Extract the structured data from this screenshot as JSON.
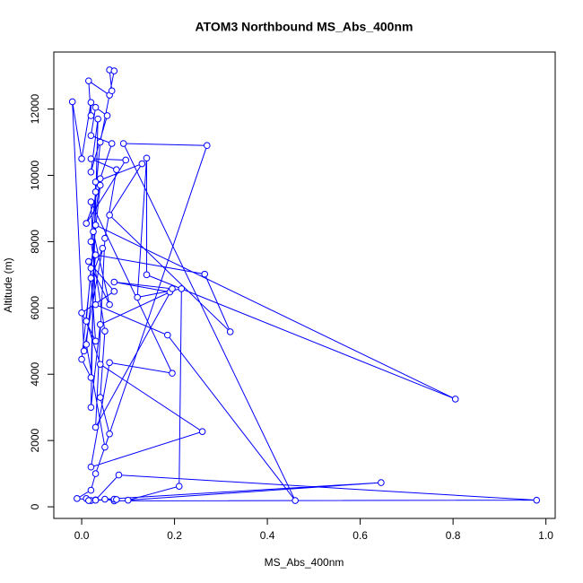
{
  "chart_data": {
    "type": "line",
    "title": "ATOM3 Northbound MS_Abs_400nm",
    "x_label": "MS_Abs_400nm",
    "y_label": "Altitude (m)",
    "color": "#0000ff",
    "marker": "open-circle",
    "x": [
      0.01,
      0.02,
      0.03,
      0.08,
      0.98,
      0.07,
      0.05,
      0.645,
      0.1,
      0.21,
      0.215,
      0.12,
      0.14,
      0.14,
      0.805,
      0.03,
      0.02,
      0.01,
      0.04,
      0.26,
      0.02,
      0.06,
      0.195,
      0.02,
      0.03,
      0.185,
      0.46,
      0.09,
      0.27,
      0.05,
      0.01,
      0.03,
      0.265,
      0.32,
      0.06,
      0.13,
      0.03,
      0.02,
      0.04,
      0.19,
      0.07,
      0.195,
      0.03,
      0.05,
      0.075,
      0.02,
      0.095,
      0.01,
      0.04,
      0,
      0.02,
      0.035,
      0.02,
      0.055,
      0.03,
      0.02,
      0.065,
      0.04,
      0.025,
      0.06,
      0.015,
      0.07,
      0,
      0.03,
      0.02,
      0.045,
      0.005,
      -0.02,
      0,
      0.02,
      0.02,
      0.015,
      0.06,
      0.065,
      0.06,
      0.07,
      0.04,
      0.03,
      0.02,
      0.05,
      0.04,
      0.06,
      0.03,
      0.02,
      -0.01,
      0.03,
      0.07,
      0.075,
      0.015
    ],
    "values": [
      250,
      190,
      210,
      960,
      200,
      180,
      230,
      730,
      200,
      620,
      6580,
      6320,
      10520,
      7000,
      3250,
      8500,
      7200,
      5600,
      4300,
      2270,
      1200,
      4350,
      4030,
      9200,
      6100,
      5180,
      190,
      10960,
      10900,
      1800,
      4900,
      7600,
      7020,
      5280,
      8800,
      10350,
      9800,
      3000,
      5500,
      6480,
      6780,
      6580,
      2400,
      8100,
      10170,
      10500,
      10460,
      8550,
      9700,
      4450,
      3900,
      11700,
      10100,
      11800,
      12050,
      11200,
      10960,
      9900,
      8300,
      6100,
      7400,
      6500,
      5850,
      5000,
      6900,
      7800,
      4700,
      12220,
      10500,
      12200,
      11800,
      12850,
      12420,
      12550,
      13180,
      13150,
      11000,
      9500,
      8000,
      5300,
      3300,
      2200,
      1000,
      500,
      250,
      200,
      230,
      220,
      190
    ],
    "xlim": [
      -0.06,
      1.02
    ],
    "ylim": [
      -350,
      13720
    ],
    "xticks": [
      {
        "value": 0,
        "label": "0.0"
      },
      0.2,
      0.4,
      0.6,
      0.8,
      {
        "value": 1,
        "label": "1.0"
      }
    ],
    "yticks": [
      0,
      2000,
      4000,
      6000,
      8000,
      10000,
      12000
    ]
  }
}
